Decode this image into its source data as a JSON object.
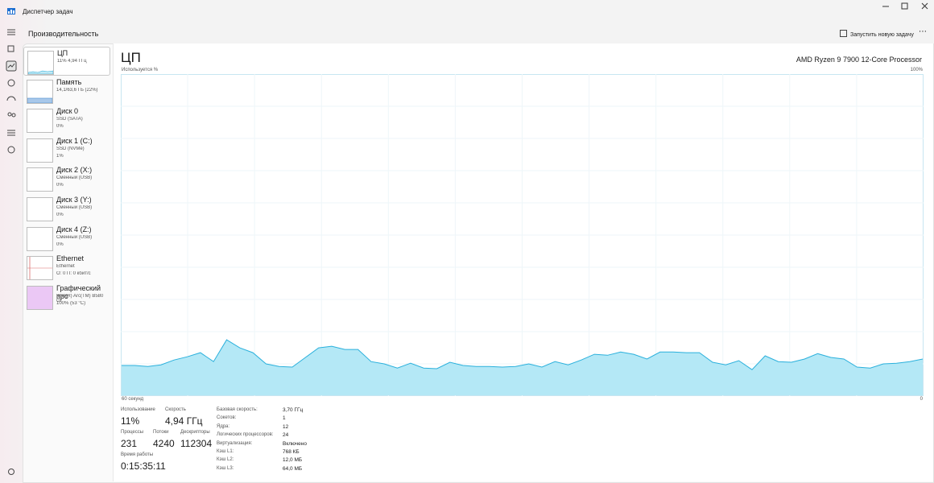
{
  "window": {
    "title": "Диспетчер задач"
  },
  "header": {
    "title": "Производительность",
    "action": "Запустить новую задачу"
  },
  "sidebar": [
    {
      "name": "ЦП",
      "lines": [
        "11% 4,94 ГГц"
      ]
    },
    {
      "name": "Память",
      "lines": [
        "14,1/63,6 ГБ (22%)"
      ]
    },
    {
      "name": "Диск 0",
      "lines": [
        "SSD (SATA)",
        "0%"
      ]
    },
    {
      "name": "Диск 1 (C:)",
      "lines": [
        "SSD (NVMe)",
        "1%"
      ]
    },
    {
      "name": "Диск 2 (X:)",
      "lines": [
        "Сменный (USB)",
        "0%"
      ]
    },
    {
      "name": "Диск 3 (Y:)",
      "lines": [
        "Сменный (USB)",
        "0%"
      ]
    },
    {
      "name": "Диск 4 (Z:)",
      "lines": [
        "Сменный (USB)",
        "0%"
      ]
    },
    {
      "name": "Ethernet",
      "lines": [
        "Ethernet",
        "О: 0 П: 0 кбит/с"
      ]
    },
    {
      "name": "Графический про",
      "lines": [
        "Intel(R) Arc(TM) B580 Gr",
        "100% (53 °C)"
      ]
    }
  ],
  "cpu": {
    "title": "ЦП",
    "model": "AMD Ryzen 9 7900 12-Core Processor",
    "y_label": "Используется %",
    "y_max_label": "100%",
    "x_left_label": "60 секунд",
    "x_right_label": "0",
    "graph": {
      "ylim": [
        0,
        100
      ],
      "values": [
        9.3,
        9.3,
        9.0,
        9.5,
        11.0,
        12.0,
        13.3,
        10.5,
        17.3,
        14.8,
        13.3,
        9.8,
        9.0,
        8.8,
        11.8,
        14.8,
        15.3,
        14.3,
        14.3,
        10.5,
        9.8,
        8.5,
        10.0,
        8.5,
        8.3,
        10.3,
        9.3,
        9.0,
        9.0,
        8.8,
        9.0,
        9.8,
        8.8,
        10.5,
        9.5,
        11.0,
        12.8,
        12.5,
        13.5,
        12.8,
        11.3,
        13.5,
        13.5,
        13.3,
        13.3,
        10.3,
        9.5,
        10.8,
        8.0,
        12.3,
        10.5,
        10.3,
        11.3,
        13.0,
        11.8,
        11.3,
        8.8,
        8.5,
        9.8,
        10.0,
        10.5,
        11.3
      ]
    }
  },
  "stats": [
    {
      "label": "Использование",
      "value": "11%"
    },
    {
      "label": "Скорость",
      "value": "4,94 ГГц"
    },
    {
      "label": "Процессы",
      "value": "231"
    },
    {
      "label": "Потоки",
      "value": "4240"
    },
    {
      "label": "Дескрипторы",
      "value": "112304"
    },
    {
      "label": "Время работы",
      "value": "0:15:35:11"
    }
  ],
  "details": [
    [
      "Базовая скорость:",
      "3,70 ГГц"
    ],
    [
      "Сокетов:",
      "1"
    ],
    [
      "Ядра:",
      "12"
    ],
    [
      "Логических процессоров:",
      "24"
    ],
    [
      "Виртуализация:",
      "Включено"
    ],
    [
      "Кэш L1:",
      "768 КБ"
    ],
    [
      "Кэш L2:",
      "12,0 МБ"
    ],
    [
      "Кэш L3:",
      "64,0 МБ"
    ]
  ]
}
